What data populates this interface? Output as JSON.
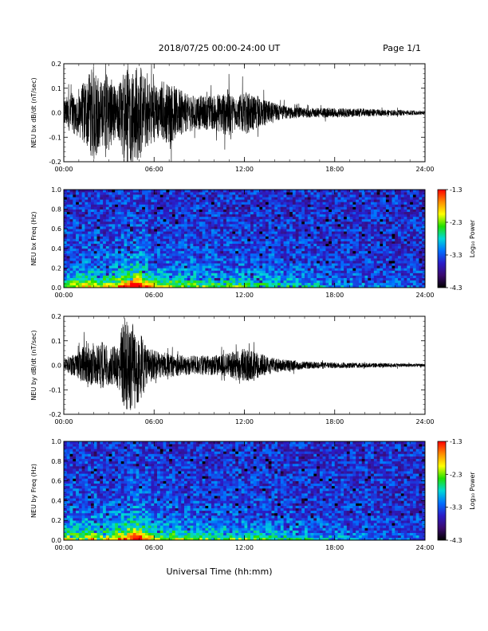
{
  "header": {
    "title": "2018/07/25  00:00-24:00 UT",
    "page": "Page 1/1"
  },
  "xaxis": {
    "label": "Universal Time (hh:mm)",
    "ticks": [
      "00:00",
      "06:00",
      "12:00",
      "18:00",
      "24:00"
    ],
    "range_hours": [
      0,
      24
    ]
  },
  "colors": {
    "trace": "#000000",
    "colormap": [
      "#000000",
      "#3a0a6e",
      "#2a1cc8",
      "#0070ff",
      "#00d8d8",
      "#20e000",
      "#ffff00",
      "#ff8c00",
      "#ff0000"
    ]
  },
  "chart_data": [
    {
      "type": "line",
      "ylabel": "NEU bx dB/dt (nT/sec)",
      "ylim": [
        -0.2,
        0.2
      ],
      "yticks": [
        "0.2",
        "0.1",
        "0.0",
        "-0.1",
        "-0.2"
      ],
      "envelope_hours": [
        0,
        1,
        1.5,
        2,
        2.5,
        3,
        3.5,
        4,
        4.5,
        5,
        5.5,
        6,
        6.5,
        7,
        8,
        9,
        10,
        11,
        11.5,
        12,
        13,
        14,
        15,
        16,
        18,
        20,
        22,
        24
      ],
      "envelope_amplitude": [
        0.06,
        0.1,
        0.14,
        0.2,
        0.13,
        0.16,
        0.09,
        0.2,
        0.2,
        0.2,
        0.14,
        0.12,
        0.11,
        0.13,
        0.08,
        0.07,
        0.07,
        0.1,
        0.06,
        0.09,
        0.06,
        0.04,
        0.025,
        0.02,
        0.02,
        0.016,
        0.012,
        0.008
      ]
    },
    {
      "type": "heatmap",
      "ylabel": "NEU bx Freq (Hz)",
      "ylim": [
        0.0,
        1.0
      ],
      "yticks": [
        "1.0",
        "0.8",
        "0.6",
        "0.4",
        "0.2",
        "0.0"
      ],
      "colorbar_label": "Log₁₀ Power",
      "colorbar_ticks": [
        "-1.3",
        "-2.3",
        "-3.3",
        "-4.3"
      ],
      "colorbar_range": [
        -4.3,
        -1.3
      ],
      "activity_hours": [
        0,
        1,
        2,
        3,
        4,
        4.7,
        5.5,
        6,
        7,
        8,
        10,
        12,
        14,
        16,
        18,
        20,
        22,
        24
      ],
      "activity_level": [
        0.45,
        0.55,
        0.6,
        0.55,
        0.8,
        1.0,
        0.75,
        0.55,
        0.5,
        0.45,
        0.4,
        0.4,
        0.35,
        0.25,
        0.2,
        0.15,
        0.12,
        0.1
      ]
    },
    {
      "type": "line",
      "ylabel": "NEU by dB/dt (nT/sec)",
      "ylim": [
        -0.2,
        0.2
      ],
      "yticks": [
        "0.2",
        "0.1",
        "0.0",
        "-0.1",
        "-0.2"
      ],
      "envelope_hours": [
        0,
        1,
        1.5,
        2,
        2.5,
        3,
        3.5,
        4,
        4.5,
        5,
        5.5,
        6,
        7,
        8,
        9,
        10,
        11,
        12,
        13,
        14,
        16,
        18,
        20,
        22,
        24
      ],
      "envelope_amplitude": [
        0.03,
        0.05,
        0.1,
        0.07,
        0.1,
        0.08,
        0.08,
        0.2,
        0.2,
        0.16,
        0.08,
        0.06,
        0.05,
        0.04,
        0.04,
        0.04,
        0.05,
        0.07,
        0.05,
        0.03,
        0.015,
        0.012,
        0.01,
        0.008,
        0.006
      ]
    },
    {
      "type": "heatmap",
      "ylabel": "NEU by Freq (Hz)",
      "ylim": [
        0.0,
        1.0
      ],
      "yticks": [
        "1.0",
        "0.8",
        "0.6",
        "0.4",
        "0.2",
        "0.0"
      ],
      "colorbar_label": "Log₁₀ Power",
      "colorbar_ticks": [
        "-1.3",
        "-2.3",
        "-3.3",
        "-4.3"
      ],
      "colorbar_range": [
        -4.3,
        -1.3
      ],
      "activity_hours": [
        0,
        1,
        2,
        3,
        4,
        4.8,
        5.5,
        6,
        7,
        8,
        10,
        12,
        14,
        16,
        18,
        20,
        22,
        24
      ],
      "activity_level": [
        0.5,
        0.55,
        0.6,
        0.55,
        0.75,
        1.0,
        0.7,
        0.55,
        0.5,
        0.45,
        0.4,
        0.38,
        0.33,
        0.25,
        0.22,
        0.15,
        0.12,
        0.1
      ]
    }
  ]
}
